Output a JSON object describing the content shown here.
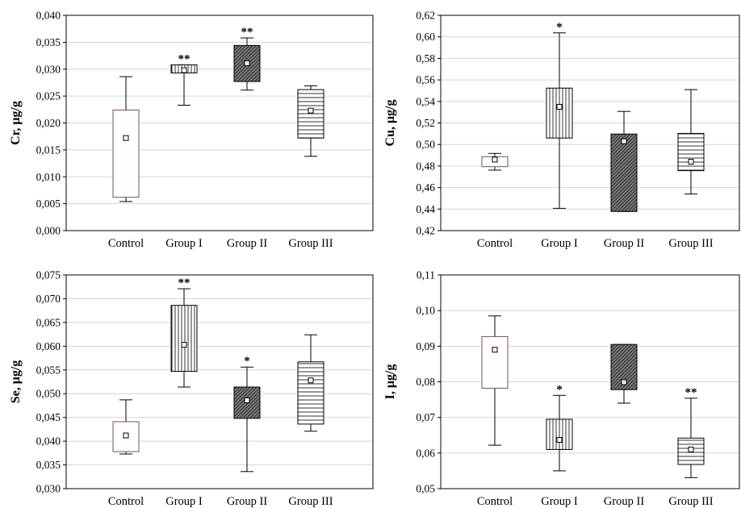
{
  "chart_data": [
    {
      "type": "box",
      "ylabel": "Cr, μg/g",
      "ylim": [
        0,
        0.04
      ],
      "yticks": [
        "0,000",
        "0,005",
        "0,010",
        "0,015",
        "0,020",
        "0,025",
        "0,030",
        "0,035",
        "0,040"
      ],
      "categories": [
        "Control",
        "Group I",
        "Group II",
        "Group III"
      ],
      "grid": true,
      "boxes": [
        {
          "category": "Control",
          "min": 0.0054,
          "q1": 0.0062,
          "mean": 0.0172,
          "q3": 0.0224,
          "max": 0.0286,
          "sig": "",
          "pattern": "plain"
        },
        {
          "category": "Group I",
          "min": 0.0233,
          "q1": 0.0293,
          "mean": 0.0298,
          "q3": 0.0308,
          "max": 0.0308,
          "sig": "**",
          "pattern": "vertical"
        },
        {
          "category": "Group II",
          "min": 0.0261,
          "q1": 0.0277,
          "mean": 0.0311,
          "q3": 0.0344,
          "max": 0.0358,
          "sig": "**",
          "pattern": "dense"
        },
        {
          "category": "Group III",
          "min": 0.0138,
          "q1": 0.0172,
          "mean": 0.0223,
          "q3": 0.0262,
          "max": 0.0269,
          "sig": "",
          "pattern": "horizontal"
        }
      ]
    },
    {
      "type": "box",
      "ylabel": "Cu, μg/g",
      "ylim": [
        0.42,
        0.62
      ],
      "yticks": [
        "0,42",
        "0,44",
        "0,46",
        "0,48",
        "0,50",
        "0,52",
        "0,54",
        "0,56",
        "0,58",
        "0,60",
        "0,62"
      ],
      "categories": [
        "Control",
        "Group I",
        "Group II",
        "Group III"
      ],
      "grid": true,
      "boxes": [
        {
          "category": "Control",
          "min": 0.4762,
          "q1": 0.4794,
          "mean": 0.486,
          "q3": 0.4887,
          "max": 0.4917,
          "sig": "",
          "pattern": "plain"
        },
        {
          "category": "Group I",
          "min": 0.4407,
          "q1": 0.506,
          "mean": 0.535,
          "q3": 0.5524,
          "max": 0.6037,
          "sig": "*",
          "pattern": "vertical"
        },
        {
          "category": "Group II",
          "min": 0.4378,
          "q1": 0.4378,
          "mean": 0.503,
          "q3": 0.5097,
          "max": 0.5307,
          "sig": "",
          "pattern": "dense"
        },
        {
          "category": "Group III",
          "min": 0.454,
          "q1": 0.4757,
          "mean": 0.484,
          "q3": 0.5103,
          "max": 0.551,
          "sig": "",
          "pattern": "horizontal"
        }
      ]
    },
    {
      "type": "box",
      "ylabel": "Se, μg/g",
      "ylim": [
        0.03,
        0.075
      ],
      "yticks": [
        "0,030",
        "0,035",
        "0,040",
        "0,045",
        "0,050",
        "0,055",
        "0,060",
        "0,065",
        "0,070",
        "0,075"
      ],
      "categories": [
        "Control",
        "Group I",
        "Group II",
        "Group III"
      ],
      "grid": true,
      "boxes": [
        {
          "category": "Control",
          "min": 0.0373,
          "q1": 0.0378,
          "mean": 0.0412,
          "q3": 0.0441,
          "max": 0.0487,
          "sig": "",
          "pattern": "plain"
        },
        {
          "category": "Group I",
          "min": 0.0514,
          "q1": 0.0547,
          "mean": 0.0603,
          "q3": 0.0686,
          "max": 0.0721,
          "sig": "**",
          "pattern": "vertical"
        },
        {
          "category": "Group II",
          "min": 0.0336,
          "q1": 0.0448,
          "mean": 0.0486,
          "q3": 0.0514,
          "max": 0.0556,
          "sig": "*",
          "pattern": "dense"
        },
        {
          "category": "Group III",
          "min": 0.0421,
          "q1": 0.0436,
          "mean": 0.0528,
          "q3": 0.0567,
          "max": 0.0624,
          "sig": "",
          "pattern": "horizontal"
        }
      ]
    },
    {
      "type": "box",
      "ylabel": "I, μg/g",
      "ylim": [
        0.05,
        0.11
      ],
      "yticks": [
        "0,05",
        "0,06",
        "0,07",
        "0,08",
        "0,09",
        "0,10",
        "0,11"
      ],
      "categories": [
        "Control",
        "Group I",
        "Group II",
        "Group III"
      ],
      "grid": true,
      "boxes": [
        {
          "category": "Control",
          "min": 0.0622,
          "q1": 0.0782,
          "mean": 0.089,
          "q3": 0.0927,
          "max": 0.0985,
          "sig": "",
          "pattern": "plain"
        },
        {
          "category": "Group I",
          "min": 0.055,
          "q1": 0.061,
          "mean": 0.0637,
          "q3": 0.0695,
          "max": 0.0762,
          "sig": "*",
          "pattern": "vertical"
        },
        {
          "category": "Group II",
          "min": 0.074,
          "q1": 0.0778,
          "mean": 0.0799,
          "q3": 0.0905,
          "max": 0.0905,
          "sig": "",
          "pattern": "dense"
        },
        {
          "category": "Group III",
          "min": 0.0531,
          "q1": 0.0568,
          "mean": 0.061,
          "q3": 0.0642,
          "max": 0.0754,
          "sig": "**",
          "pattern": "horizontal"
        }
      ]
    }
  ]
}
